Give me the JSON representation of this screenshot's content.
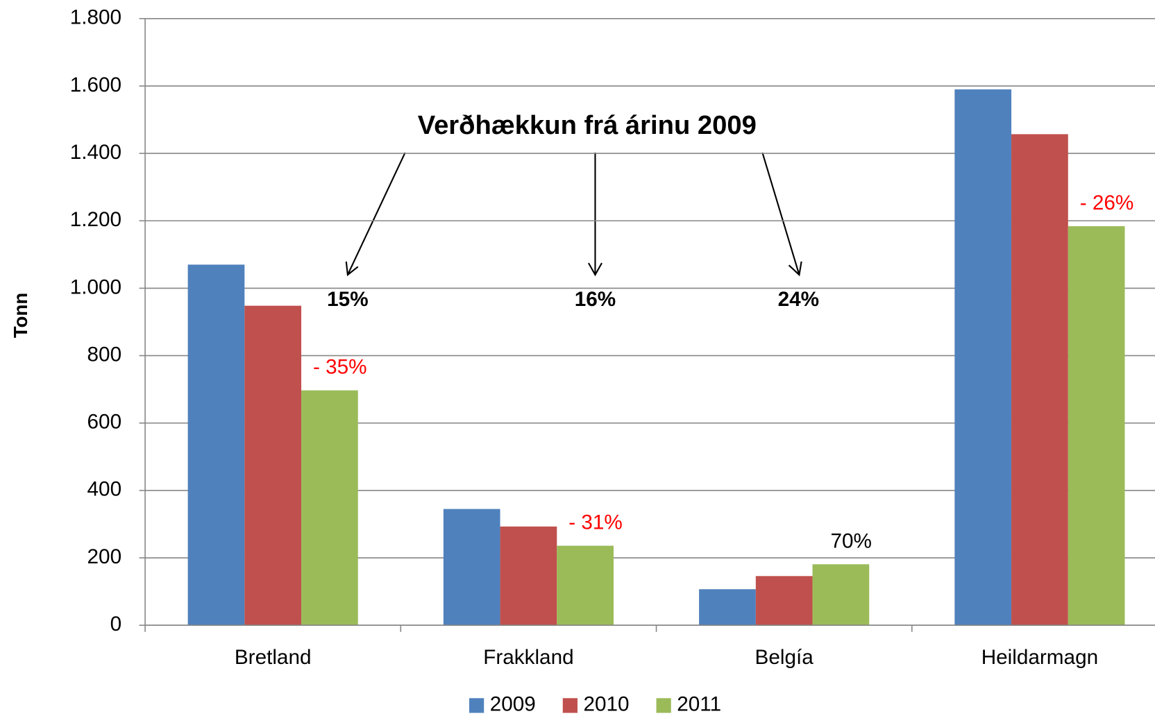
{
  "chart_data": {
    "type": "bar",
    "y_label": "Tonn",
    "categories": [
      "Bretland",
      "Frakkland",
      "Belgía",
      "Heildarmagn"
    ],
    "series": [
      {
        "name": "2009",
        "color": "#4f81bd",
        "values": [
          1070,
          345,
          107,
          1590
        ]
      },
      {
        "name": "2010",
        "color": "#c0504d",
        "values": [
          948,
          293,
          146,
          1457
        ]
      },
      {
        "name": "2011",
        "color": "#9bbb59",
        "values": [
          697,
          236,
          181,
          1184
        ]
      }
    ],
    "ylim": [
      0,
      1800
    ],
    "yticks": [
      0,
      200,
      400,
      600,
      800,
      {
        "value": 1000,
        "label": "1.000"
      },
      {
        "value": 1200,
        "label": "1.200"
      },
      {
        "value": 1400,
        "label": "1.400"
      },
      {
        "value": 1600,
        "label": "1.600"
      },
      {
        "value": 1800,
        "label": "1.800"
      }
    ],
    "grid": true,
    "legend": "bottom",
    "annotations": [
      {
        "text": "- 35%",
        "color": "#ff0000"
      },
      {
        "text": "- 31%",
        "color": "#ff0000"
      },
      {
        "text": "70%",
        "color": "#000000"
      },
      {
        "text": "- 26%",
        "color": "#ff0000"
      }
    ],
    "callout": {
      "title": "Verðhækkun frá árinu 2009",
      "labels": [
        "15%",
        "16%",
        "24%"
      ]
    }
  }
}
